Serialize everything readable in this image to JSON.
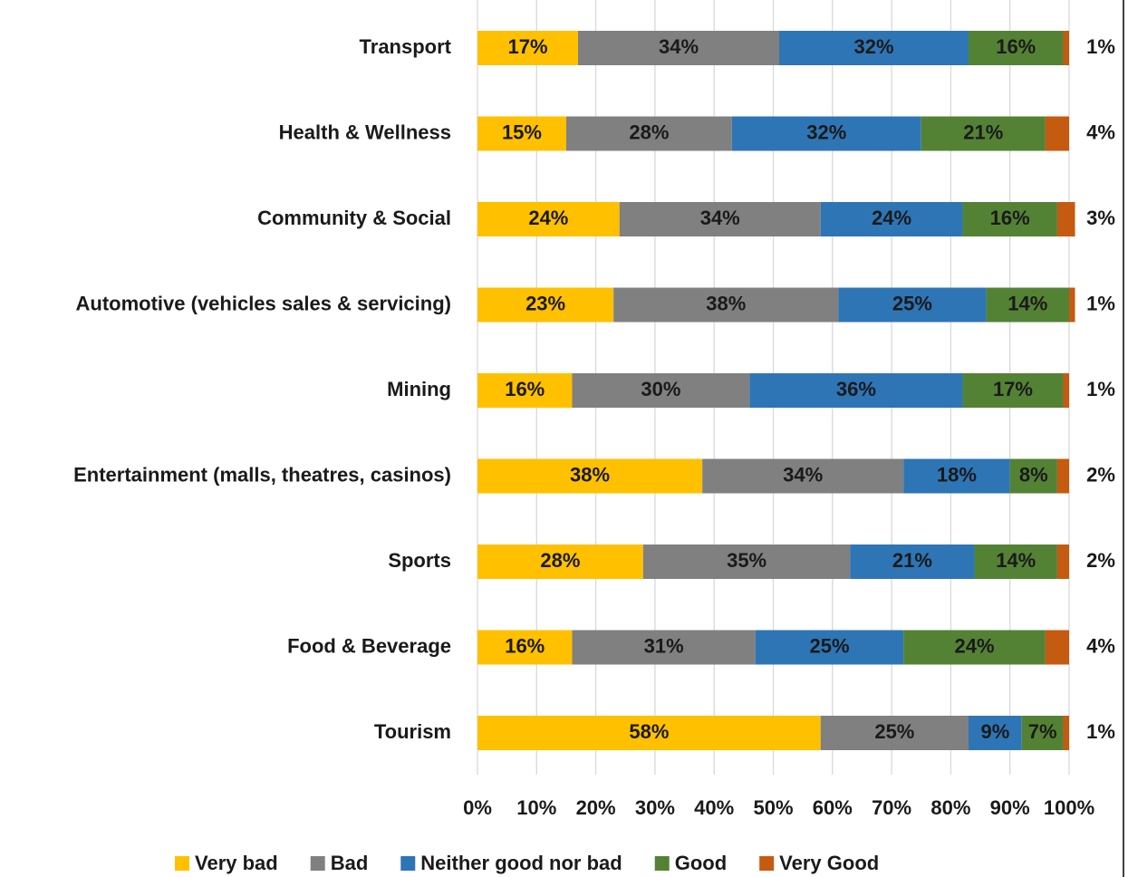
{
  "chart_data": {
    "type": "stacked-bar-horizontal",
    "categories": [
      "Transport",
      "Health & Wellness",
      "Community & Social",
      "Automotive (vehicles sales & servicing)",
      "Mining",
      "Entertainment (malls, theatres, casinos)",
      "Sports",
      "Food & Beverage",
      "Tourism"
    ],
    "series": [
      {
        "name": "Very bad",
        "color": "#FFC000",
        "values": [
          17,
          15,
          24,
          23,
          16,
          38,
          28,
          16,
          58
        ],
        "value_labels": [
          "17%",
          "15%",
          "24%",
          "23%",
          "16%",
          "38%",
          "28%",
          "16%",
          "58%"
        ]
      },
      {
        "name": "Bad",
        "color": "#808080",
        "values": [
          34,
          28,
          34,
          38,
          30,
          34,
          35,
          31,
          25
        ],
        "value_labels": [
          "34%",
          "28%",
          "34%",
          "38%",
          "30%",
          "34%",
          "35%",
          "31%",
          "25%"
        ]
      },
      {
        "name": "Neither good nor bad",
        "color": "#2E75B6",
        "values": [
          32,
          32,
          24,
          25,
          36,
          18,
          21,
          25,
          9
        ],
        "value_labels": [
          "32%",
          "32%",
          "24%",
          "25%",
          "36%",
          "18%",
          "21%",
          "25%",
          "9%"
        ]
      },
      {
        "name": "Good",
        "color": "#548235",
        "values": [
          16,
          21,
          16,
          14,
          17,
          8,
          14,
          24,
          7
        ],
        "value_labels": [
          "16%",
          "21%",
          "16%",
          "14%",
          "17%",
          "8%",
          "14%",
          "24%",
          "7%"
        ]
      },
      {
        "name": "Very Good",
        "color": "#C55A11",
        "values": [
          1,
          4,
          3,
          1,
          1,
          2,
          2,
          4,
          1
        ],
        "value_labels": [
          "1%",
          "4%",
          "3%",
          "1%",
          "1%",
          "2%",
          "2%",
          "4%",
          "1%"
        ]
      }
    ],
    "xlim": [
      0,
      100
    ],
    "xticks": [
      {
        "value": 0,
        "label": "0%"
      },
      {
        "value": 10,
        "label": "10%"
      },
      {
        "value": 20,
        "label": "20%"
      },
      {
        "value": 30,
        "label": "30%"
      },
      {
        "value": 40,
        "label": "40%"
      },
      {
        "value": 50,
        "label": "50%"
      },
      {
        "value": 60,
        "label": "60%"
      },
      {
        "value": 70,
        "label": "70%"
      },
      {
        "value": 80,
        "label": "80%"
      },
      {
        "value": 90,
        "label": "90%"
      },
      {
        "value": 100,
        "label": "100%"
      }
    ],
    "grid": true,
    "legend": "bottom"
  }
}
